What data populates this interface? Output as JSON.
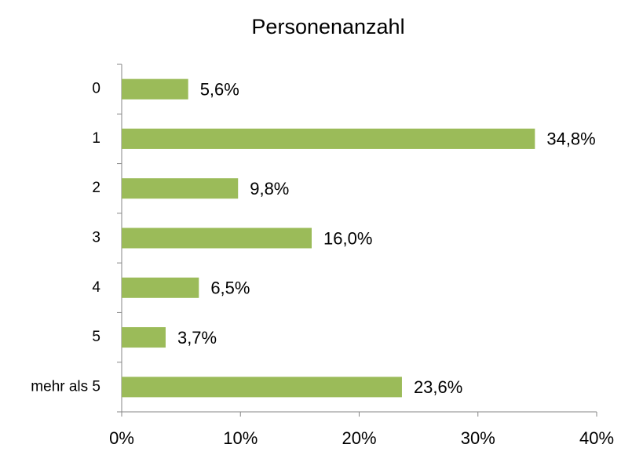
{
  "chart_data": {
    "type": "barh",
    "title": "Personenanzahl",
    "categories": [
      "0",
      "1",
      "2",
      "3",
      "4",
      "5",
      "mehr als 5"
    ],
    "values": [
      5.6,
      34.8,
      9.8,
      16.0,
      6.5,
      3.7,
      23.6
    ],
    "value_labels": [
      "5,6%",
      "34,8%",
      "9,8%",
      "16,0%",
      "6,5%",
      "3,7%",
      "23,6%"
    ],
    "color": "#9bbb59",
    "xlim": [
      0,
      40
    ],
    "xticks": [
      {
        "value": 0,
        "label": "0%"
      },
      {
        "value": 10,
        "label": "10%"
      },
      {
        "value": 20,
        "label": "20%"
      },
      {
        "value": 30,
        "label": "30%"
      },
      {
        "value": 40,
        "label": "40%"
      }
    ],
    "grid": false
  }
}
